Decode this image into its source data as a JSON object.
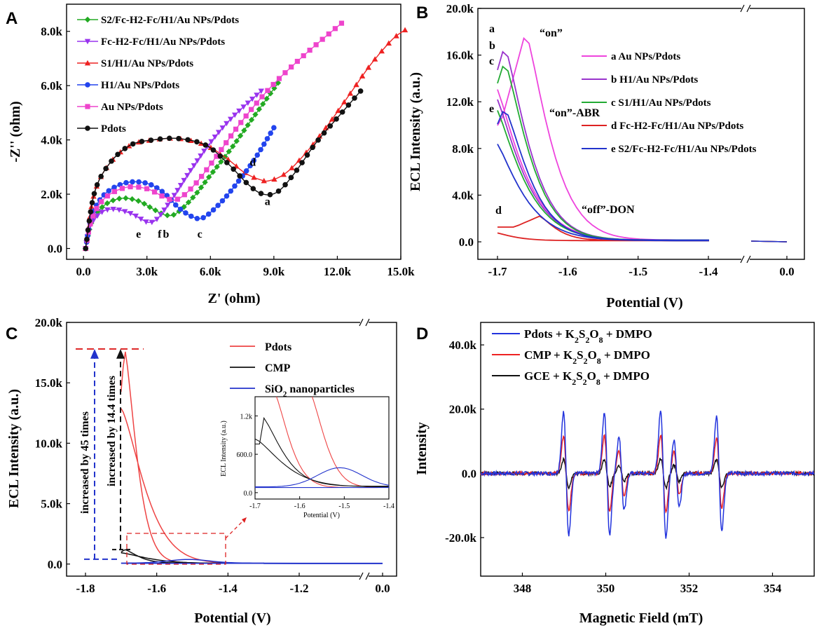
{
  "chart_data": [
    {
      "panel": "A",
      "type": "scatter",
      "xlabel": "Z' (ohm)",
      "ylabel": "-Z'' (ohm)",
      "xlim": [
        -800,
        15000
      ],
      "ylim": [
        -400,
        9000
      ],
      "xticks": [
        "0.0",
        "3.0k",
        "6.0k",
        "9.0k",
        "12.0k",
        "15.0k"
      ],
      "yticks": [
        "0.0",
        "2.0k",
        "4.0k",
        "6.0k",
        "8.0k"
      ],
      "legend_position": "top-left",
      "curve_labels": [
        "a",
        "b",
        "c",
        "d",
        "e",
        "f"
      ],
      "series": [
        {
          "name": "S2/Fc-H2-Fc/H1/Au NPs/Pdots",
          "color": "#22aa22",
          "marker": "diamond",
          "x": [
            100,
            400,
            1000,
            1800,
            2600,
            3300,
            3900,
            4400,
            5200,
            6000,
            7000,
            8000,
            9200
          ],
          "y": [
            0,
            1000,
            1600,
            1850,
            1750,
            1450,
            1230,
            1300,
            1900,
            2700,
            3700,
            4800,
            6100
          ]
        },
        {
          "name": "Fc-H2-Fc/H1/Au NPs/Pdots",
          "color": "#9933ee",
          "marker": "triangle-down",
          "x": [
            100,
            300,
            800,
            1400,
            2200,
            2800,
            3100,
            3500,
            4200,
            5000,
            6000,
            7000,
            8400
          ],
          "y": [
            0,
            800,
            1300,
            1450,
            1300,
            1050,
            960,
            1100,
            1850,
            2800,
            3900,
            4800,
            5800
          ]
        },
        {
          "name": "S1/H1/Au NPs/Pdots",
          "color": "#ee2222",
          "marker": "triangle",
          "x": [
            100,
            500,
            1200,
            2200,
            3300,
            4500,
            5800,
            6800,
            7600,
            8300,
            8800,
            9600,
            10600,
            11600,
            12600,
            13600,
            14600,
            15200
          ],
          "y": [
            0,
            2000,
            3100,
            3800,
            4000,
            4050,
            3800,
            3300,
            2800,
            2550,
            2500,
            2800,
            3600,
            4600,
            5700,
            6800,
            7700,
            8050
          ]
        },
        {
          "name": "H1/Au NPs/Pdots",
          "color": "#2244ee",
          "marker": "circle",
          "x": [
            100,
            400,
            1000,
            2000,
            3000,
            3800,
            4500,
            5200,
            5700,
            6500,
            7300,
            8100,
            9000
          ],
          "y": [
            0,
            1200,
            2000,
            2420,
            2400,
            2050,
            1500,
            1150,
            1150,
            1700,
            2450,
            3300,
            4450
          ]
        },
        {
          "name": "Au NPs/Pdots",
          "color": "#ee44cc",
          "marker": "square",
          "x": [
            100,
            400,
            1000,
            2000,
            3000,
            3800,
            4400,
            5200,
            6200,
            7400,
            8800,
            10400,
            12200
          ],
          "y": [
            0,
            1100,
            1850,
            2250,
            2200,
            1900,
            1800,
            2300,
            3300,
            4600,
            5900,
            7100,
            8300
          ]
        },
        {
          "name": "Pdots",
          "color": "#111111",
          "marker": "circle",
          "x": [
            100,
            500,
            1200,
            2200,
            3300,
            4500,
            5800,
            6800,
            7800,
            8500,
            9200,
            10000,
            11000,
            12100,
            13100
          ],
          "y": [
            0,
            2000,
            3100,
            3800,
            4000,
            4050,
            3800,
            3150,
            2350,
            2000,
            2100,
            2800,
            3900,
            4900,
            5800
          ]
        }
      ]
    },
    {
      "panel": "B",
      "type": "line",
      "xlabel": "Potential (V)",
      "ylabel": "ECL Intensity (a.u.)",
      "xticks": [
        "-1.7",
        "-1.6",
        "-1.5",
        "-1.4",
        "0.0"
      ],
      "yticks": [
        "0.0",
        "4.0k",
        "8.0k",
        "12.0k",
        "16.0k",
        "20.0k"
      ],
      "ylim": [
        -1500,
        20000
      ],
      "axis_break": true,
      "legend_position": "right",
      "annotations": [
        "“on”",
        "“on”-ABR",
        "“off”-DON",
        "a",
        "b",
        "c",
        "d",
        "e"
      ],
      "series": [
        {
          "name": "a Au NPs/Pdots",
          "color": "#ee44dd",
          "peak": 18000,
          "peak_potential": -1.66
        },
        {
          "name": "b H1/Au NPs/Pdots",
          "color": "#9933cc",
          "peak": 16800,
          "peak_potential": -1.69
        },
        {
          "name": "c S1/H1/Au NPs/Pdots",
          "color": "#22aa33",
          "peak": 15500,
          "peak_potential": -1.69
        },
        {
          "name": "d Fc-H2-Fc/H1/Au NPs/Pdots",
          "color": "#dd2222",
          "peak": 2200,
          "peak_potential": -1.64
        },
        {
          "name": "e S2/Fc-H2-Fc/H1/Au NPs/Pdots",
          "color": "#2233cc",
          "peak": 11500,
          "peak_potential": -1.69
        }
      ]
    },
    {
      "panel": "C",
      "type": "line",
      "xlabel": "Potential (V)",
      "ylabel": "ECL Intensity (a.u.)",
      "xticks": [
        "-1.8",
        "-1.6",
        "-1.4",
        "-1.2",
        "0.0"
      ],
      "yticks": [
        "0.0",
        "5.0k",
        "10.0k",
        "15.0k",
        "20.0k"
      ],
      "ylim": [
        -1000,
        20000
      ],
      "axis_break": true,
      "legend_position": "top-right",
      "annotations": [
        "increased by 45 times",
        "increased by 14.4 times"
      ],
      "series": [
        {
          "name": "Pdots",
          "color": "#ee4444",
          "peak": 17800,
          "peak_potential": -1.69
        },
        {
          "name": "CMP",
          "color": "#111111",
          "peak": 1200,
          "peak_potential": -1.69
        },
        {
          "name": "SiO",
          "name_subscript": "2",
          "name_suffix": " nanoparticles",
          "color": "#2233cc",
          "peak": 380,
          "peak_potential": -1.51
        }
      ],
      "inset": {
        "xlabel": "Potential (V)",
        "ylabel": "ECL Intensity (a.u.)",
        "xticks": [
          "-1.7",
          "-1.6",
          "-1.5",
          "-1.4"
        ],
        "yticks": [
          "0.0",
          "600.0",
          "1.2k"
        ],
        "xlim": [
          -1.7,
          -1.4
        ],
        "ylim": [
          -100,
          1500
        ]
      }
    },
    {
      "panel": "D",
      "type": "line",
      "xlabel": "Magnetic Field (mT)",
      "ylabel": "Intensity",
      "xticks": [
        "348",
        "350",
        "352",
        "354"
      ],
      "xlim": [
        347,
        355
      ],
      "yticks": [
        "-20.0k",
        "0.0",
        "20.0k",
        "40.0k"
      ],
      "ylim": [
        -32000,
        47000
      ],
      "legend_position": "top-left",
      "line_positions_mT": [
        349.05,
        350.03,
        350.38,
        351.38,
        351.7,
        352.72
      ],
      "series": [
        {
          "name": "Pdots + K",
          "formula": [
            "2",
            "S",
            "2",
            "O",
            "8",
            " + DMPO"
          ],
          "color": "#2233dd",
          "amplitudes": [
            27000,
            27000,
            16000,
            28000,
            15000,
            25000
          ]
        },
        {
          "name": "CMP + K",
          "formula": [
            "2",
            "S",
            "2",
            "O",
            "8",
            " + DMPO"
          ],
          "color": "#ee2222",
          "amplitudes": [
            16500,
            16500,
            10000,
            17000,
            9500,
            15500
          ]
        },
        {
          "name": "GCE + K",
          "formula": [
            "2",
            "S",
            "2",
            "O",
            "8",
            " + DMPO"
          ],
          "color": "#111111",
          "amplitudes": [
            6000,
            6000,
            3500,
            6500,
            3500,
            6000
          ]
        }
      ]
    }
  ],
  "panels": {
    "A": "A",
    "B": "B",
    "C": "C",
    "D": "D"
  }
}
